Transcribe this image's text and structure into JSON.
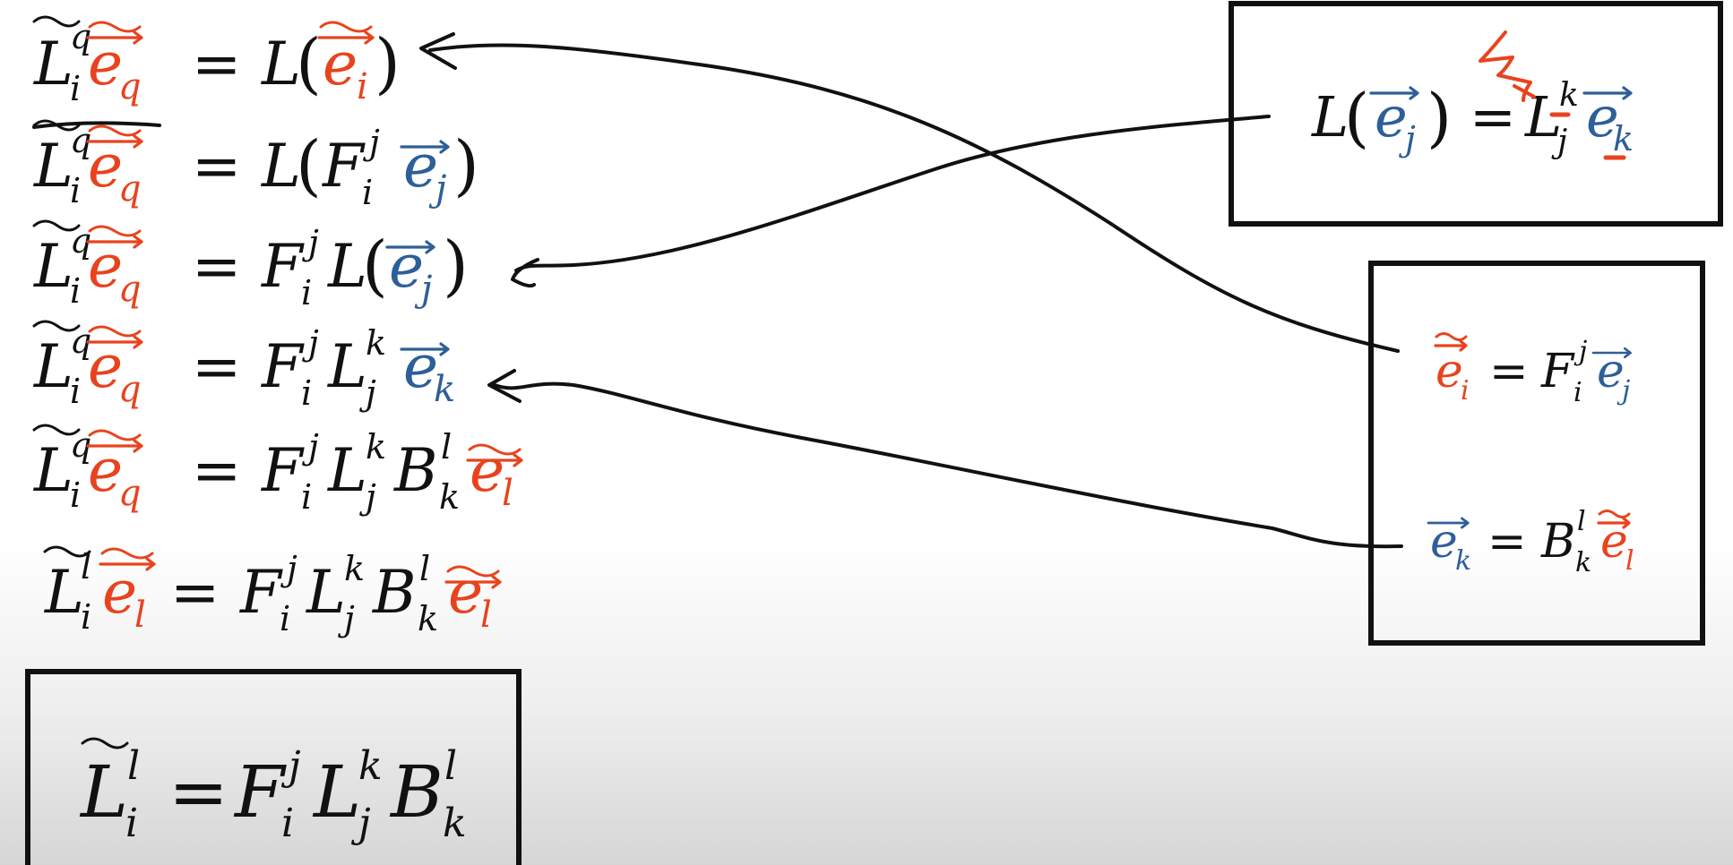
{
  "symbols": {
    "L": "L",
    "F": "F",
    "B": "B",
    "e": "e",
    "eq": "=",
    "lp": "(",
    "rp": ")",
    "i": "i",
    "j": "j",
    "k": "k",
    "l": "l",
    "q": "q"
  },
  "colors": {
    "new_basis": "#e8431e",
    "old_basis": "#2d5f98",
    "ink": "#111111"
  },
  "derivation_lines": [
    "L̃ᵢ^q ẽ_q = L(ẽᵢ)",
    "L̃ᵢ^q ẽ_q = L(Fᵢ^j e⃗ⱼ)",
    "L̃ᵢ^q ẽ_q = Fᵢ^j L(e⃗ⱼ)",
    "L̃ᵢ^q ẽ_q = Fᵢ^j Lⱼ^k e⃗ₖ",
    "L̃ᵢ^q ẽ_q = Fᵢ^j Lⱼ^k Bₖ^l ẽₗ",
    "L̃ᵢ^l ẽₗ = Fᵢ^j Lⱼ^k Bₖ^l ẽₗ"
  ],
  "result_box": "L̃ᵢ^l = Fᵢ^j Lⱼ^k Bₖ^l",
  "definition_box": "L(e⃗ⱼ) = Lⱼ^k e⃗ₖ",
  "transform_box": [
    "ẽᵢ = Fᵢ^j e⃗ⱼ",
    "e⃗ₖ = Bₖ^l ẽₗ"
  ]
}
